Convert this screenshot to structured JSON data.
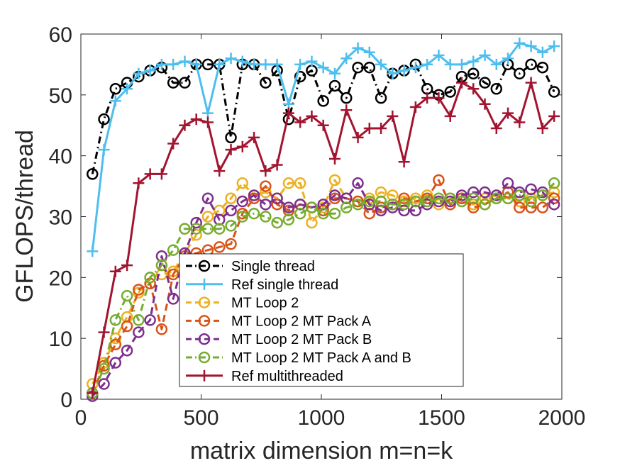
{
  "chart_data": {
    "type": "line",
    "xlabel": "matrix dimension m=n=k",
    "ylabel": "GFLOPS/thread",
    "xlim": [
      0,
      2000
    ],
    "ylim": [
      0,
      60
    ],
    "xticks": [
      0,
      500,
      1000,
      1500,
      2000
    ],
    "yticks": [
      0,
      10,
      20,
      30,
      40,
      50,
      60
    ],
    "xtick_labels": [
      "0",
      "500",
      "1000",
      "1500",
      "2000"
    ],
    "ytick_labels": [
      "0",
      "10",
      "20",
      "30",
      "40",
      "50",
      "60"
    ],
    "grid": false,
    "legend_position": "bottom-center",
    "x": [
      48,
      96,
      144,
      192,
      240,
      288,
      336,
      384,
      432,
      480,
      528,
      576,
      624,
      672,
      720,
      768,
      816,
      864,
      912,
      960,
      1008,
      1056,
      1104,
      1152,
      1200,
      1248,
      1296,
      1344,
      1392,
      1440,
      1488,
      1536,
      1584,
      1632,
      1680,
      1728,
      1776,
      1824,
      1872,
      1920,
      1968
    ],
    "series": [
      {
        "name": "Single thread",
        "color": "#000000",
        "line": "dashdot",
        "marker": "circle",
        "values": [
          37.0,
          46.0,
          51.0,
          52.0,
          53.0,
          54.0,
          54.5,
          52.0,
          52.0,
          55.0,
          55.0,
          55.0,
          43.0,
          55.0,
          55.0,
          52.0,
          54.0,
          46.0,
          53.0,
          54.0,
          49.0,
          51.5,
          49.5,
          54.5,
          54.5,
          49.5,
          53.5,
          54.0,
          55.0,
          51.0,
          50.0,
          50.5,
          53.0,
          53.5,
          52.0,
          51.0,
          55.0,
          53.5,
          55.0,
          54.5,
          50.5
        ]
      },
      {
        "name": "Ref single thread",
        "color": "#4DBEEE",
        "line": "solid",
        "marker": "plus",
        "values": [
          24.3,
          41.0,
          49.0,
          51.0,
          53.5,
          54.0,
          55.0,
          55.0,
          55.5,
          55.0,
          47.0,
          55.0,
          56.0,
          55.5,
          55.0,
          55.0,
          55.0,
          48.5,
          55.0,
          55.5,
          54.5,
          53.5,
          56.0,
          57.7,
          57.0,
          55.0,
          53.5,
          54.0,
          54.5,
          55.0,
          56.5,
          55.0,
          55.0,
          55.5,
          56.5,
          55.0,
          56.0,
          58.5,
          58.0,
          57.0,
          58.0
        ]
      },
      {
        "name": "MT Loop 2",
        "color": "#EDB120",
        "line": "dashed",
        "marker": "circle",
        "values": [
          2.5,
          6.0,
          10.0,
          13.5,
          17.5,
          20.0,
          20.5,
          21.0,
          24.0,
          27.0,
          30.0,
          31.0,
          33.0,
          35.5,
          33.5,
          34.0,
          33.0,
          35.5,
          35.5,
          29.0,
          31.5,
          36.0,
          33.0,
          32.5,
          33.0,
          34.0,
          33.5,
          32.5,
          33.0,
          33.5,
          32.0,
          33.0,
          32.5,
          32.0,
          33.0,
          33.5,
          33.0,
          32.5,
          33.0,
          33.5,
          34.0
        ]
      },
      {
        "name": "MT Loop 2 MT Pack A",
        "color": "#D95319",
        "line": "dashed",
        "marker": "circle",
        "values": [
          1.0,
          5.5,
          9.0,
          12.0,
          18.0,
          19.0,
          11.5,
          20.5,
          23.5,
          24.0,
          24.5,
          25.0,
          25.5,
          30.5,
          33.0,
          35.0,
          32.0,
          31.0,
          32.0,
          31.5,
          31.0,
          33.0,
          33.0,
          32.5,
          30.5,
          31.5,
          32.0,
          33.0,
          32.5,
          33.0,
          36.0,
          32.0,
          33.0,
          31.5,
          32.0,
          33.0,
          34.0,
          31.5,
          31.5,
          31.5,
          33.0
        ]
      },
      {
        "name": "MT Loop 2 MT Pack B",
        "color": "#7E2F8E",
        "line": "dashed",
        "marker": "circle",
        "values": [
          0.5,
          2.5,
          6.0,
          8.0,
          11.0,
          13.0,
          23.5,
          16.5,
          24.0,
          29.0,
          33.0,
          29.5,
          31.0,
          32.5,
          33.5,
          32.0,
          33.0,
          31.5,
          32.0,
          31.5,
          32.0,
          33.5,
          33.0,
          35.5,
          32.0,
          31.0,
          31.5,
          31.0,
          31.0,
          32.0,
          32.5,
          32.5,
          33.5,
          34.0,
          34.0,
          33.5,
          35.5,
          34.0,
          34.5,
          34.0,
          32.0
        ]
      },
      {
        "name": "MT Loop 2 MT Pack A and B",
        "color": "#77AC30",
        "line": "dashdot",
        "marker": "circle",
        "values": [
          1.0,
          5.0,
          13.0,
          17.0,
          13.0,
          20.0,
          22.0,
          24.5,
          28.0,
          28.0,
          28.0,
          28.0,
          28.5,
          30.0,
          30.5,
          30.0,
          29.0,
          29.5,
          30.5,
          31.5,
          30.5,
          30.5,
          31.5,
          32.0,
          32.5,
          32.5,
          32.0,
          32.0,
          32.5,
          32.5,
          33.0,
          33.0,
          32.5,
          33.0,
          32.0,
          33.0,
          33.0,
          33.5,
          32.5,
          33.5,
          35.5
        ]
      },
      {
        "name": "Ref multithreaded",
        "color": "#A2142F",
        "line": "solid",
        "marker": "plus",
        "values": [
          1.0,
          11.0,
          21.0,
          22.0,
          35.5,
          37.0,
          37.0,
          42.0,
          45.0,
          46.0,
          45.5,
          37.5,
          41.0,
          41.5,
          43.0,
          37.5,
          38.5,
          47.0,
          45.5,
          46.5,
          45.0,
          39.5,
          47.5,
          43.0,
          44.5,
          44.5,
          46.5,
          39.0,
          48.0,
          49.5,
          49.5,
          46.5,
          52.0,
          51.0,
          48.5,
          44.5,
          47.0,
          45.5,
          52.0,
          44.5,
          46.5
        ]
      }
    ]
  }
}
